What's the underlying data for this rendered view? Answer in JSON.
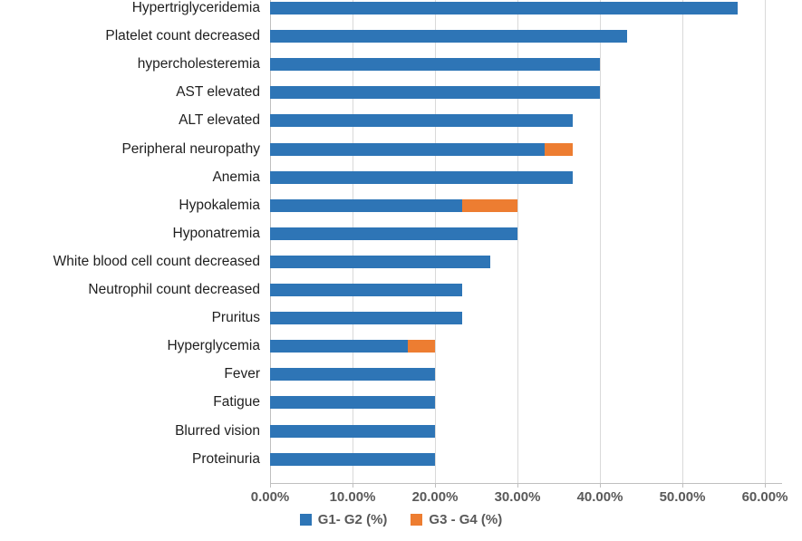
{
  "chart_data": {
    "type": "bar",
    "orientation": "horizontal",
    "stacked": true,
    "title": "",
    "xlabel": "",
    "ylabel": "",
    "categories": [
      "Hypertriglyceridemia",
      "Platelet count decreased",
      "hypercholesteremia",
      "AST elevated",
      "ALT elevated",
      "Peripheral neuropathy",
      "Anemia",
      "Hypokalemia",
      "Hyponatremia",
      "White blood cell count decreased",
      "Neutrophil count decreased",
      "Pruritus",
      "Hyperglycemia",
      "Fever",
      "Fatigue",
      "Blurred vision",
      "Proteinuria"
    ],
    "series": [
      {
        "name": "G1- G2 (%)",
        "color": "#2E75B6",
        "values": [
          56.67,
          43.33,
          40.0,
          40.0,
          36.67,
          33.33,
          36.67,
          23.33,
          30.0,
          26.67,
          23.33,
          23.33,
          16.67,
          20.0,
          20.0,
          20.0,
          20.0
        ]
      },
      {
        "name": "G3 - G4 (%)",
        "color": "#ED7D31",
        "values": [
          0,
          0,
          0,
          0,
          0,
          3.33,
          0,
          6.67,
          0,
          0,
          0,
          0,
          3.33,
          0,
          0,
          0,
          0
        ]
      }
    ],
    "x_axis": {
      "min": 0,
      "max": 60,
      "tick_step": 10,
      "tick_labels": [
        "0.00%",
        "10.00%",
        "20.00%",
        "30.00%",
        "40.00%",
        "50.00%",
        "60.00%"
      ]
    },
    "grid": true,
    "legend_position": "bottom"
  },
  "style_colors": {
    "gridline": "#D9D9D9",
    "axis_line": "#BFBFBF",
    "axis_text": "#595959",
    "category_text": "#1F1F1F",
    "background": "#FFFFFF"
  }
}
